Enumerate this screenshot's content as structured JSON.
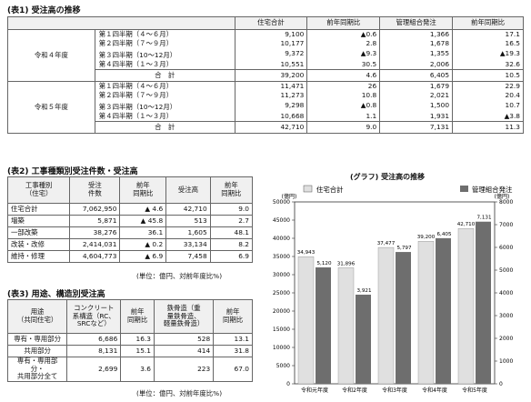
{
  "table1": {
    "heading": "(表1) 受注高の推移",
    "headers": [
      "住宅合計",
      "前年同期比",
      "管理組合発注",
      "前年同期比"
    ],
    "blocks": [
      {
        "year": "令和４年度",
        "rows": [
          {
            "period": "第１四半期（４～６月）",
            "v": [
              "9,100",
              "▲0.6",
              "1,366",
              "17.1"
            ]
          },
          {
            "period": "第２四半期（７～９月）",
            "v": [
              "10,177",
              "2.8",
              "1,678",
              "16.5"
            ]
          },
          {
            "period": "第３四半期（10～12月）",
            "v": [
              "9,372",
              "▲9.3",
              "1,355",
              "▲19.3"
            ]
          },
          {
            "period": "第４四半期（１～３月）",
            "v": [
              "10,551",
              "30.5",
              "2,006",
              "32.6"
            ]
          }
        ],
        "total_label": "合　計",
        "total": [
          "39,200",
          "4.6",
          "6,405",
          "10.5"
        ]
      },
      {
        "year": "令和５年度",
        "rows": [
          {
            "period": "第１四半期（４～６月）",
            "v": [
              "11,471",
              "26",
              "1,679",
              "22.9"
            ]
          },
          {
            "period": "第２四半期（７～９月）",
            "v": [
              "11,273",
              "10.8",
              "2,021",
              "20.4"
            ]
          },
          {
            "period": "第３四半期（10～12月）",
            "v": [
              "9,298",
              "▲0.8",
              "1,500",
              "10.7"
            ]
          },
          {
            "period": "第４四半期（１～３月）",
            "v": [
              "10,668",
              "1.1",
              "1,931",
              "▲3.8"
            ]
          }
        ],
        "total_label": "合　計",
        "total": [
          "42,710",
          "9.0",
          "7,131",
          "11.3"
        ]
      }
    ]
  },
  "table2": {
    "heading": "(表2) 工事種類別受注件数・受注高",
    "headers": [
      "工事種別\n（住宅）",
      "受注\n件数",
      "前年\n同期比",
      "受注高",
      "前年\n同期比"
    ],
    "rows": [
      [
        "住宅合計",
        "7,062,950",
        "▲ 4.6",
        "42,710",
        "9.0"
      ],
      [
        "増築",
        "5,871",
        "▲ 45.8",
        "513",
        "2.7"
      ],
      [
        "一部改築",
        "38,276",
        "36.1",
        "1,605",
        "48.1"
      ],
      [
        "改装・改修",
        "2,414,031",
        "▲ 0.2",
        "33,134",
        "8.2"
      ],
      [
        "維持・修理",
        "4,604,773",
        "▲ 6.9",
        "7,458",
        "6.9"
      ]
    ],
    "unit": "(単位：億円、対前年度比%)"
  },
  "table3": {
    "heading": "(表3) 用途、構造別受注高",
    "headers": [
      "用途\n（共同住宅）",
      "コンクリート\n系構造（RC、\nSRCなど）",
      "前年\n同期比",
      "鉄骨造（重\n量鉄骨造、\n軽量鉄骨造）",
      "前年\n同期比"
    ],
    "rows": [
      [
        "専有・専用部分",
        "6,686",
        "16.3",
        "528",
        "13.1"
      ],
      [
        "共用部分",
        "8,131",
        "15.1",
        "414",
        "31.8"
      ],
      [
        "専有・専用部分・\n共用部分全て",
        "2,699",
        "3.6",
        "223",
        "67.0"
      ]
    ],
    "unit": "(単位：億円、対前年度比%)"
  },
  "chart_data": {
    "type": "bar",
    "title": "(グラフ) 受注高の推移",
    "categories": [
      "令和元年度",
      "令和2年度",
      "令和3年度",
      "令和4年度",
      "令和5年度"
    ],
    "series": [
      {
        "name": "住宅合計",
        "axis": "left",
        "color": "#e0e0e0",
        "values": [
          34943,
          31896,
          37477,
          39200,
          42710
        ]
      },
      {
        "name": "管理組合発注",
        "axis": "right",
        "color": "#6e6e6e",
        "values": [
          5120,
          3921,
          5797,
          6405,
          7131
        ]
      }
    ],
    "ylabel_left": "(億円)",
    "ylabel_right": "(億円)",
    "ylim_left": [
      0,
      50000
    ],
    "ylim_right": [
      0,
      8000
    ],
    "yticks_left": [
      "0",
      "5000",
      "10000",
      "15000",
      "20000",
      "25000",
      "30000",
      "35000",
      "40000",
      "45000",
      "50000"
    ],
    "yticks_right": [
      "0",
      "1000",
      "2000",
      "3000",
      "4000",
      "5000",
      "6000",
      "7000",
      "8000"
    ],
    "data_labels": [
      [
        "34,943",
        "31,896",
        "37,477",
        "39,200",
        "42,710"
      ],
      [
        "5,120",
        "3,921",
        "5,797",
        "6,405",
        "7,131"
      ]
    ],
    "legend_position": "top",
    "grid": false
  }
}
